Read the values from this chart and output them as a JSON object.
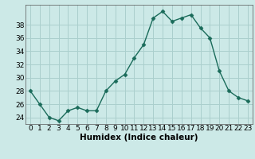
{
  "x": [
    0,
    1,
    2,
    3,
    4,
    5,
    6,
    7,
    8,
    9,
    10,
    11,
    12,
    13,
    14,
    15,
    16,
    17,
    18,
    19,
    20,
    21,
    22,
    23
  ],
  "y": [
    28,
    26,
    24,
    23.5,
    25,
    25.5,
    25,
    25,
    28,
    29.5,
    30.5,
    33,
    35,
    39,
    40,
    38.5,
    39,
    39.5,
    37.5,
    36,
    31,
    28,
    27,
    26.5
  ],
  "line_color": "#1a6b5a",
  "marker_color": "#1a6b5a",
  "bg_color": "#cce9e7",
  "grid_color": "#aacfcd",
  "xlabel": "Humidex (Indice chaleur)",
  "ylim": [
    23,
    41
  ],
  "xlim": [
    -0.5,
    23.5
  ],
  "yticks": [
    24,
    26,
    28,
    30,
    32,
    34,
    36,
    38
  ],
  "xtick_labels": [
    "0",
    "1",
    "2",
    "3",
    "4",
    "5",
    "6",
    "7",
    "8",
    "9",
    "10",
    "11",
    "12",
    "13",
    "14",
    "15",
    "16",
    "17",
    "18",
    "19",
    "20",
    "21",
    "22",
    "23"
  ],
  "xlabel_fontsize": 7.5,
  "tick_fontsize": 6.5,
  "line_width": 1.0,
  "marker_size": 2.5
}
